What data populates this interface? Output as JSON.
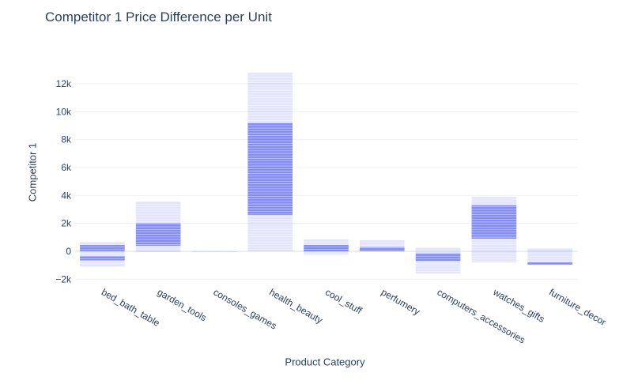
{
  "chart_data": {
    "type": "bar",
    "title": "Competitor 1 Price Difference per Unit",
    "xlabel": "Product Category",
    "ylabel": "Competitor 1",
    "ylim": [
      -2000,
      13500
    ],
    "yticks": [
      -2000,
      0,
      2000,
      4000,
      6000,
      8000,
      10000,
      12000
    ],
    "ytick_labels": [
      "−2k",
      "0",
      "2k",
      "4k",
      "6k",
      "8k",
      "10k",
      "12k"
    ],
    "grid": true,
    "color": "#636efa",
    "categories": [
      "bed_bath_table",
      "garden_tools",
      "consoles_games",
      "health_beauty",
      "cool_stuff",
      "perfumery",
      "computers_accessories",
      "watches_gifts",
      "furniture_decor"
    ],
    "stacks": [
      {
        "pos": 650,
        "neg": -1100,
        "dense_pos": [
          0,
          450
        ],
        "dense_neg": [
          -350,
          -650
        ]
      },
      {
        "pos": 3550,
        "neg": -30,
        "dense_pos": [
          400,
          2000
        ],
        "dense_neg": [
          0,
          0
        ]
      },
      {
        "pos": 0,
        "neg": -40,
        "dense_pos": [
          0,
          0
        ],
        "dense_neg": [
          0,
          0
        ]
      },
      {
        "pos": 12800,
        "neg": 0,
        "dense_pos": [
          2600,
          9200
        ],
        "dense_neg": [
          0,
          0
        ]
      },
      {
        "pos": 850,
        "neg": -250,
        "dense_pos": [
          0,
          450
        ],
        "dense_neg": [
          0,
          0
        ]
      },
      {
        "pos": 800,
        "neg": 0,
        "dense_pos": [
          0,
          300
        ],
        "dense_neg": [
          0,
          0
        ]
      },
      {
        "pos": 250,
        "neg": -1600,
        "dense_pos": [
          0,
          0
        ],
        "dense_neg": [
          -150,
          -700
        ]
      },
      {
        "pos": 3900,
        "neg": -800,
        "dense_pos": [
          900,
          3300
        ],
        "dense_neg": [
          0,
          0
        ]
      },
      {
        "pos": 200,
        "neg": -950,
        "dense_pos": [
          0,
          0
        ],
        "dense_neg": [
          -800,
          -950
        ]
      }
    ]
  }
}
